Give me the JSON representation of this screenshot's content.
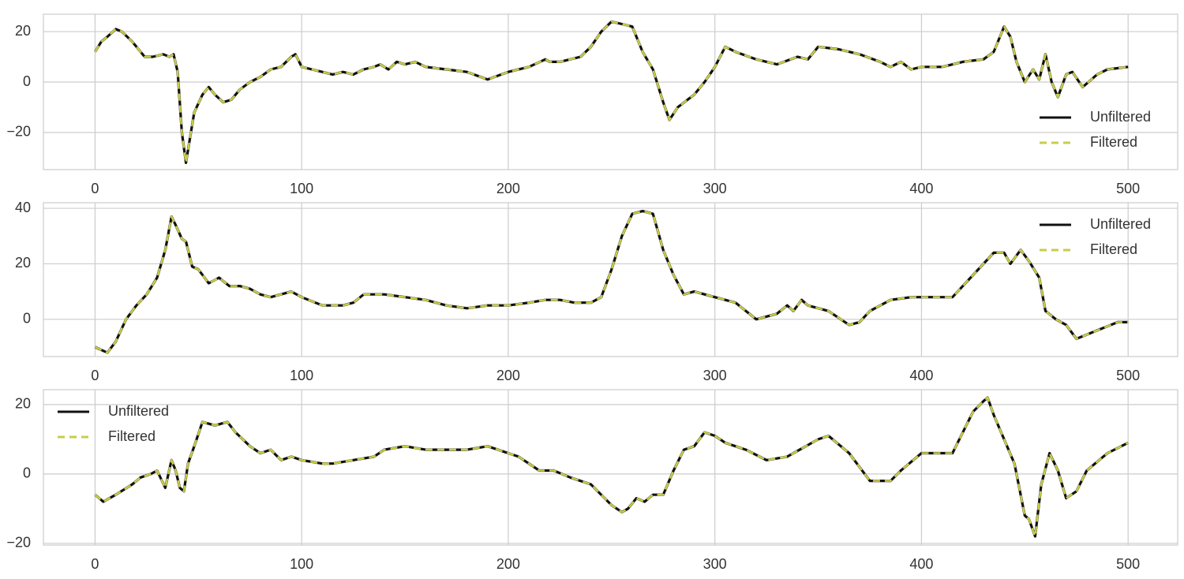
{
  "chart_data": [
    {
      "type": "line",
      "grid": true,
      "legend": "lower right",
      "xlim": [
        -25,
        524
      ],
      "ylim": [
        -34.7,
        26.9
      ],
      "xticks": [
        0,
        100,
        200,
        300,
        400,
        500
      ],
      "yticks": [
        {
          "value": -20,
          "label": "−20"
        },
        0,
        20
      ],
      "x": [
        0,
        3,
        6,
        10,
        13,
        18,
        24,
        28,
        33,
        36,
        38,
        40,
        42,
        44,
        46,
        48,
        52,
        55,
        58,
        62,
        66,
        70,
        75,
        80,
        85,
        90,
        95,
        97,
        100,
        105,
        110,
        115,
        120,
        125,
        130,
        135,
        138,
        142,
        146,
        150,
        155,
        160,
        170,
        180,
        190,
        200,
        210,
        218,
        220,
        225,
        230,
        235,
        240,
        245,
        250,
        255,
        260,
        265,
        270,
        275,
        278,
        282,
        290,
        295,
        300,
        305,
        310,
        320,
        330,
        340,
        345,
        350,
        360,
        370,
        380,
        385,
        390,
        395,
        400,
        410,
        420,
        430,
        435,
        440,
        443,
        446,
        450,
        454,
        457,
        460,
        463,
        466,
        470,
        473,
        478,
        485,
        490,
        500
      ],
      "series": [
        {
          "name": "Unfiltered",
          "color": "#111111",
          "linestyle": "solid",
          "values": [
            12,
            16,
            18,
            21,
            20,
            16,
            10,
            10,
            11,
            10,
            11,
            4,
            -20,
            -32,
            -22,
            -12,
            -5,
            -2,
            -5,
            -8,
            -7,
            -3,
            0,
            2,
            5,
            6,
            10,
            11,
            6,
            5,
            4,
            3,
            4,
            3,
            5,
            6,
            7,
            5,
            8,
            7,
            8,
            6,
            5,
            4,
            1,
            4,
            6,
            9,
            8,
            8,
            9,
            10,
            14,
            20,
            24,
            23,
            22,
            12,
            5,
            -8,
            -15,
            -10,
            -5,
            0,
            6,
            14,
            12,
            9,
            7,
            10,
            9,
            14,
            13,
            11,
            8,
            6,
            8,
            5,
            6,
            6,
            8,
            9,
            12,
            22,
            18,
            8,
            0,
            5,
            1,
            11,
            0,
            -6,
            3,
            4,
            -2,
            3,
            5,
            6
          ]
        },
        {
          "name": "Filtered",
          "color": "#c8cc4a",
          "linestyle": "dashed",
          "values": [
            12,
            16,
            18,
            21,
            20,
            16,
            10,
            10,
            11,
            10,
            11,
            4,
            -20,
            -32,
            -22,
            -12,
            -5,
            -2,
            -5,
            -8,
            -7,
            -3,
            0,
            2,
            5,
            6,
            10,
            11,
            6,
            5,
            4,
            3,
            4,
            3,
            5,
            6,
            7,
            5,
            8,
            7,
            8,
            6,
            5,
            4,
            1,
            4,
            6,
            9,
            8,
            8,
            9,
            10,
            14,
            20,
            24,
            23,
            22,
            12,
            5,
            -8,
            -15,
            -10,
            -5,
            0,
            6,
            14,
            12,
            9,
            7,
            10,
            9,
            14,
            13,
            11,
            8,
            6,
            8,
            5,
            6,
            6,
            8,
            9,
            12,
            22,
            18,
            8,
            0,
            5,
            1,
            11,
            0,
            -6,
            3,
            4,
            -2,
            3,
            5,
            6
          ]
        }
      ]
    },
    {
      "type": "line",
      "grid": true,
      "legend": "upper right",
      "xlim": [
        -25,
        524
      ],
      "ylim": [
        -13.4,
        42
      ],
      "xticks": [
        0,
        100,
        200,
        300,
        400,
        500
      ],
      "yticks": [
        0,
        20,
        40
      ],
      "x": [
        0,
        6,
        10,
        15,
        20,
        25,
        30,
        34,
        37,
        39,
        42,
        44,
        47,
        50,
        55,
        60,
        65,
        70,
        75,
        80,
        85,
        90,
        95,
        100,
        110,
        120,
        125,
        130,
        140,
        150,
        160,
        170,
        180,
        190,
        200,
        210,
        218,
        225,
        232,
        240,
        245,
        250,
        255,
        260,
        265,
        270,
        275,
        280,
        285,
        290,
        300,
        310,
        320,
        325,
        330,
        335,
        338,
        342,
        345,
        355,
        365,
        370,
        375,
        385,
        395,
        405,
        415,
        425,
        435,
        440,
        443,
        448,
        452,
        457,
        460,
        465,
        470,
        475,
        485,
        495,
        500
      ],
      "series": [
        {
          "name": "Unfiltered",
          "color": "#111111",
          "linestyle": "solid",
          "values": [
            -10,
            -12,
            -8,
            0,
            5,
            9,
            15,
            25,
            37,
            34,
            29,
            28,
            19,
            18,
            13,
            15,
            12,
            12,
            11,
            9,
            8,
            9,
            10,
            8,
            5,
            5,
            6,
            9,
            9,
            8,
            7,
            5,
            4,
            5,
            5,
            6,
            7,
            7,
            6,
            6,
            8,
            18,
            30,
            38,
            39,
            38,
            25,
            16,
            9,
            10,
            8,
            6,
            0,
            1,
            2,
            5,
            3,
            7,
            5,
            3,
            -2,
            -1,
            3,
            7,
            8,
            8,
            8,
            16,
            24,
            24,
            20,
            25,
            21,
            15,
            3,
            0,
            -2,
            -7,
            -4,
            -1,
            -1
          ]
        },
        {
          "name": "Filtered",
          "color": "#c8cc4a",
          "linestyle": "dashed",
          "values": [
            -10,
            -12,
            -8,
            0,
            5,
            9,
            15,
            25,
            37,
            34,
            29,
            28,
            19,
            18,
            13,
            15,
            12,
            12,
            11,
            9,
            8,
            9,
            10,
            8,
            5,
            5,
            6,
            9,
            9,
            8,
            7,
            5,
            4,
            5,
            5,
            6,
            7,
            7,
            6,
            6,
            8,
            18,
            30,
            38,
            39,
            38,
            25,
            16,
            9,
            10,
            8,
            6,
            0,
            1,
            2,
            5,
            3,
            7,
            5,
            3,
            -2,
            -1,
            3,
            7,
            8,
            8,
            8,
            16,
            24,
            24,
            20,
            25,
            21,
            15,
            3,
            0,
            -2,
            -7,
            -4,
            -1,
            -1
          ]
        }
      ]
    },
    {
      "type": "line",
      "grid": true,
      "legend": "upper left",
      "xlim": [
        -25,
        524
      ],
      "ylim": [
        -20.5,
        24.3
      ],
      "xticks": [
        0,
        100,
        200,
        300,
        400,
        500
      ],
      "yticks": [
        {
          "value": -20,
          "label": "−20"
        },
        0,
        20
      ],
      "x": [
        0,
        4,
        10,
        18,
        22,
        27,
        30,
        34,
        37,
        39,
        41,
        43,
        45,
        48,
        52,
        58,
        64,
        68,
        75,
        80,
        85,
        90,
        95,
        100,
        110,
        115,
        125,
        135,
        140,
        150,
        160,
        170,
        180,
        190,
        200,
        205,
        215,
        222,
        230,
        240,
        245,
        250,
        255,
        258,
        262,
        266,
        270,
        275,
        280,
        285,
        290,
        295,
        300,
        305,
        315,
        325,
        335,
        350,
        355,
        365,
        370,
        375,
        385,
        390,
        400,
        410,
        415,
        420,
        425,
        430,
        432,
        435,
        440,
        445,
        450,
        452,
        455,
        458,
        462,
        466,
        470,
        475,
        480,
        490,
        500
      ],
      "series": [
        {
          "name": "Unfiltered",
          "color": "#111111",
          "linestyle": "solid",
          "values": [
            -6,
            -8,
            -6,
            -3,
            -1,
            0,
            1,
            -4,
            4,
            1,
            -4,
            -5,
            3,
            8,
            15,
            14,
            15,
            12,
            8,
            6,
            7,
            4,
            5,
            4,
            3,
            3,
            4,
            5,
            7,
            8,
            7,
            7,
            7,
            8,
            6,
            5,
            1,
            1,
            -1,
            -3,
            -6,
            -9,
            -11,
            -10,
            -7,
            -8,
            -6,
            -6,
            1,
            7,
            8,
            12,
            11,
            9,
            7,
            4,
            5,
            10,
            11,
            6,
            2,
            -2,
            -2,
            1,
            6,
            6,
            6,
            12,
            18,
            21,
            22,
            17,
            10,
            3,
            -12,
            -13,
            -18,
            -3,
            6,
            1,
            -7,
            -5,
            1,
            6,
            9
          ]
        },
        {
          "name": "Filtered",
          "color": "#c8cc4a",
          "linestyle": "dashed",
          "values": [
            -6,
            -8,
            -6,
            -3,
            -1,
            0,
            1,
            -4,
            4,
            1,
            -4,
            -5,
            3,
            8,
            15,
            14,
            15,
            12,
            8,
            6,
            7,
            4,
            5,
            4,
            3,
            3,
            4,
            5,
            7,
            8,
            7,
            7,
            7,
            8,
            6,
            5,
            1,
            1,
            -1,
            -3,
            -6,
            -9,
            -11,
            -10,
            -7,
            -8,
            -6,
            -6,
            1,
            7,
            8,
            12,
            11,
            9,
            7,
            4,
            5,
            10,
            11,
            6,
            2,
            -2,
            -2,
            1,
            6,
            6,
            6,
            12,
            18,
            21,
            22,
            17,
            10,
            3,
            -12,
            -13,
            -18,
            -3,
            6,
            1,
            -7,
            -5,
            1,
            6,
            9
          ]
        }
      ]
    }
  ]
}
